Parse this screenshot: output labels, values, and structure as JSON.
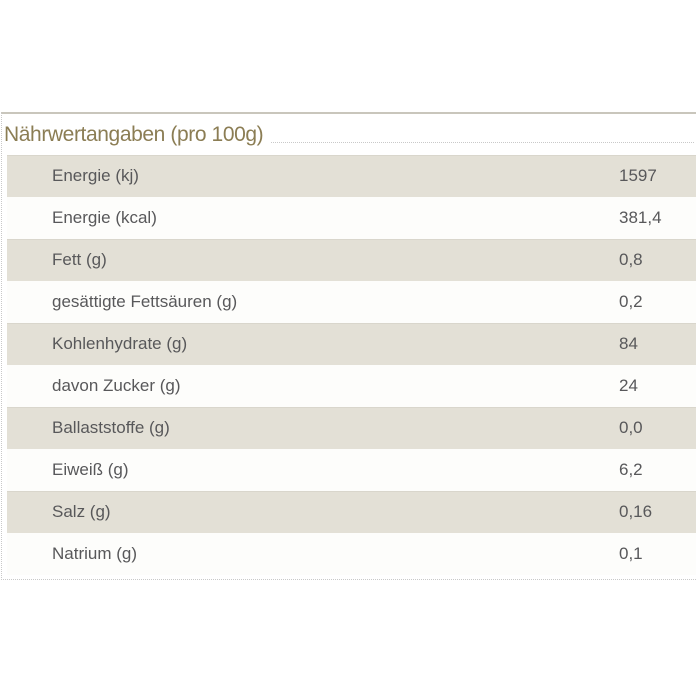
{
  "nutrition_table": {
    "title": "Nährwertangaben (pro 100g)",
    "rows": [
      {
        "label": "Energie (kj)",
        "value": "1597"
      },
      {
        "label": "Energie (kcal)",
        "value": "381,4"
      },
      {
        "label": "Fett (g)",
        "value": "0,8"
      },
      {
        "label": "gesättigte Fettsäuren (g)",
        "value": "0,2"
      },
      {
        "label": "Kohlenhydrate (g)",
        "value": "84"
      },
      {
        "label": "davon Zucker (g)",
        "value": "24"
      },
      {
        "label": "Ballaststoffe (g)",
        "value": "0,0"
      },
      {
        "label": "Eiweiß (g)",
        "value": "6,2"
      },
      {
        "label": "Salz (g)",
        "value": "0,16"
      },
      {
        "label": "Natrium (g)",
        "value": "0,1"
      }
    ]
  },
  "colors": {
    "title_text": "#8b7d54",
    "row_text": "#58585a",
    "row_alt_bg": "#e3e0d6",
    "row_bg": "#fdfdfb",
    "top_line": "#c9c6bc",
    "dotted_border": "#c9c9c9"
  }
}
